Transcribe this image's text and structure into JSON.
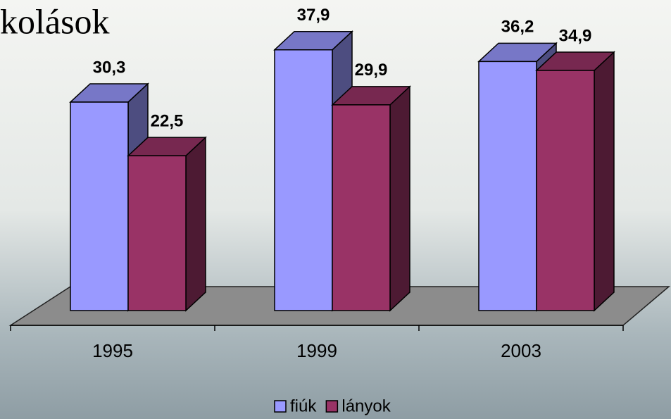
{
  "chart_data": {
    "type": "bar3d",
    "title": "kolások",
    "categories": [
      "1995",
      "1999",
      "2003"
    ],
    "series": [
      {
        "name": "fiúk",
        "color": "#9999ff",
        "values": [
          30.3,
          37.9,
          36.2
        ],
        "value_labels": [
          "30,3",
          "37,9",
          "36,2"
        ]
      },
      {
        "name": "lányok",
        "color": "#993366",
        "values": [
          22.5,
          29.9,
          34.9
        ],
        "value_labels": [
          "22,5",
          "29,9",
          "34,9"
        ]
      }
    ],
    "legend": "bottom"
  }
}
